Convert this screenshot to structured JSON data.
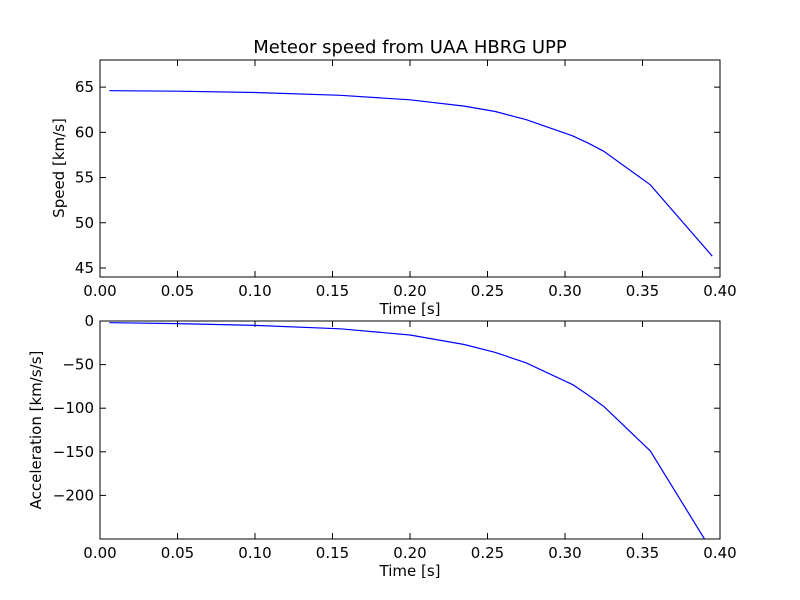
{
  "chart_data": [
    {
      "type": "line",
      "title": "Meteor speed from  UAA HBRG UPP",
      "xlabel": "Time [s]",
      "ylabel": "Speed [km/s]",
      "xlim": [
        0.0,
        0.4
      ],
      "ylim": [
        44,
        68
      ],
      "xticks": [
        0.0,
        0.05,
        0.1,
        0.15,
        0.2,
        0.25,
        0.3,
        0.35,
        0.4
      ],
      "xtick_labels": [
        "0.00",
        "0.05",
        "0.10",
        "0.15",
        "0.20",
        "0.25",
        "0.30",
        "0.35",
        "0.40"
      ],
      "yticks": [
        45,
        50,
        55,
        60,
        65
      ],
      "ytick_labels": [
        "45",
        "50",
        "55",
        "60",
        "65"
      ],
      "grid": false,
      "series": [
        {
          "color": "#0000ff",
          "x": [
            0.006,
            0.05,
            0.1,
            0.155,
            0.2,
            0.235,
            0.255,
            0.275,
            0.305,
            0.315,
            0.325,
            0.355,
            0.395
          ],
          "y": [
            64.6,
            64.55,
            64.4,
            64.1,
            63.6,
            62.9,
            62.3,
            61.4,
            59.6,
            58.8,
            57.9,
            54.2,
            46.3
          ]
        }
      ]
    },
    {
      "type": "line",
      "title": "",
      "xlabel": "Time [s]",
      "ylabel": "Acceleration [km/s/s]",
      "xlim": [
        0.0,
        0.4
      ],
      "ylim": [
        -250,
        0
      ],
      "xticks": [
        0.0,
        0.05,
        0.1,
        0.15,
        0.2,
        0.25,
        0.3,
        0.35,
        0.4
      ],
      "xtick_labels": [
        "0.00",
        "0.05",
        "0.10",
        "0.15",
        "0.20",
        "0.25",
        "0.30",
        "0.35",
        "0.40"
      ],
      "yticks": [
        0,
        -50,
        -100,
        -150,
        -200
      ],
      "ytick_labels": [
        "0",
        "−50",
        "−100",
        "−150",
        "−200"
      ],
      "grid": false,
      "series": [
        {
          "color": "#0000ff",
          "x": [
            0.006,
            0.05,
            0.1,
            0.155,
            0.2,
            0.235,
            0.255,
            0.275,
            0.305,
            0.315,
            0.325,
            0.355,
            0.39
          ],
          "y": [
            -2,
            -3,
            -5,
            -9,
            -16,
            -27,
            -36,
            -48,
            -73,
            -85,
            -98,
            -149,
            -250
          ]
        }
      ]
    }
  ]
}
